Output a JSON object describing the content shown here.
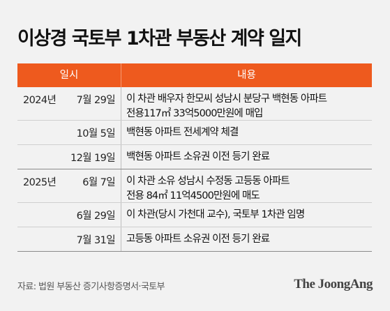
{
  "title": "이상경 국토부 1차관 부동산 계약 일지",
  "table": {
    "headers": {
      "date": "일시",
      "content": "내용"
    },
    "rows": [
      {
        "year": "2024년",
        "date": "7월 29일",
        "lines": [
          "이 차관 배우자 한모씨 성남시 분당구 백현동 아파트",
          "전용117㎡ 33억5000만원에 매입"
        ]
      },
      {
        "year": "",
        "date": "10월 5일",
        "lines": [
          "백현동 아파트 전세계약 체결"
        ]
      },
      {
        "year": "",
        "date": "12월 19일",
        "lines": [
          "백현동 아파트 소유권 이전 등기 완료"
        ]
      },
      {
        "year": "2025년",
        "date": "6월 7일",
        "lines": [
          "이 차관 소유 성남시 수정동 고등동 아파트",
          "전용 84㎡ 11억4500만원에 매도"
        ]
      },
      {
        "year": "",
        "date": "6월 29일",
        "lines": [
          "이 차관(당시 가천대 교수), 국토부 1차관 임명"
        ]
      },
      {
        "year": "",
        "date": "7월 31일",
        "lines": [
          "고등동 아파트 소유권 이전 등기 완료"
        ]
      }
    ]
  },
  "source": "자료: 법원 부동산 증기사항증명서·국토부",
  "logo": "The JoongAng"
}
